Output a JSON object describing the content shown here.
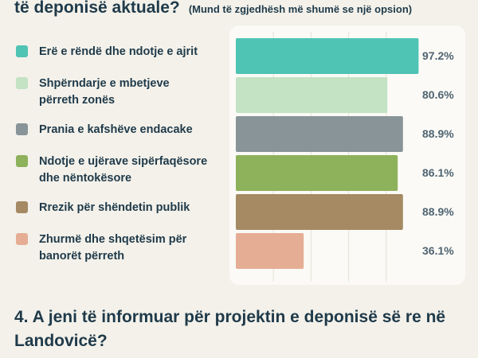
{
  "question3": {
    "title_cont": "të deponisë aktuale?",
    "note": "(Mund të zgjedhësh më shumë se një opsion)"
  },
  "chart_data": {
    "type": "bar",
    "orientation": "horizontal",
    "title": "të deponisë aktuale?",
    "categories": [
      "Erë e rëndë dhe ndotje e ajrit",
      "Shpërndarje e mbetjeve përreth zonës",
      "Prania e kafshëve endacake",
      "Ndotje e ujërave sipërfaqësore dhe nëntokësore",
      "Rrezik për shëndetin publik",
      "Zhurmë dhe shqetësim për banorët përreth"
    ],
    "series": [
      {
        "values": [
          97.2,
          80.6,
          88.9,
          86.1,
          88.9,
          36.1
        ]
      }
    ],
    "value_labels": [
      "97.2%",
      "80.6%",
      "88.9%",
      "86.1%",
      "88.9%",
      "36.1%"
    ],
    "colors": [
      "#4fc3b4",
      "#c4e2c4",
      "#889497",
      "#8eb15b",
      "#a58a63",
      "#e6ad95"
    ],
    "xlim": [
      0,
      100
    ],
    "grid": true,
    "legend": "left"
  },
  "legend_lines": [
    [
      "Erë e rëndë dhe ndotje e ajrit"
    ],
    [
      "Shpërndarje e mbetjeve",
      "përreth zonës"
    ],
    [
      "Prania e kafshëve endacake"
    ],
    [
      "Ndotje e ujërave sipërfaqësore",
      "dhe nëntokësore"
    ],
    [
      "Rrezik për shëndetin publik"
    ],
    [
      "Zhurmë dhe shqetësim për",
      "banorët përreth"
    ]
  ],
  "question4": {
    "title": "4. A jeni të informuar për projektin e deponisë së re në Landovicë?"
  }
}
